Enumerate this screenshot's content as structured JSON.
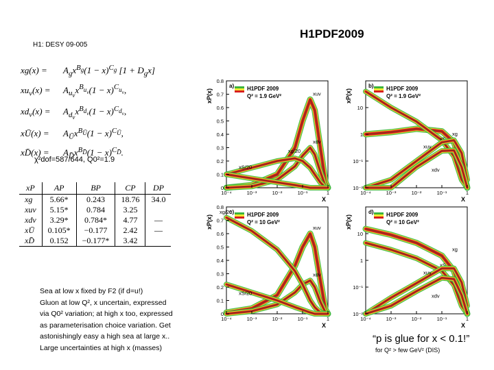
{
  "header": {
    "reference": "H1: DESY 09-005",
    "title": "H1PDF2009"
  },
  "equations": [
    {
      "lhs": "xg(x) =",
      "rhs": "A_g x^{B_g} (1 − x)^{C_g} [1 + D_g x]"
    },
    {
      "lhs": "xu_v(x) =",
      "rhs": "A_{u_v} x^{B_{u_v}} (1 − x)^{C_{u_v}},"
    },
    {
      "lhs": "xd_v(x) =",
      "rhs": "A_{d_v} x^{B_{d_v}} (1 − x)^{C_{d_v}},"
    },
    {
      "lhs": "xŪ(x) =",
      "rhs": "A_Ū x^{B_Ū} (1 − x)^{C_Ū},"
    },
    {
      "lhs": "xD̄(x) =",
      "rhs": "A_D̄ x^{B_D̄} (1 − x)^{C_D̄}."
    }
  ],
  "chi2": "χ²dof=587/644, Q0²=1.9",
  "param_table": {
    "headers": [
      "xP",
      "AP",
      "BP",
      "CP",
      "DP"
    ],
    "rows": [
      [
        "xg",
        "5.66*",
        "0.243",
        "18.76",
        "34.0"
      ],
      [
        "xuv",
        "5.15*",
        "0.784",
        "3.25",
        ""
      ],
      [
        "xdv",
        "3.29*",
        "0.784*",
        "4.77",
        "—"
      ],
      [
        "xŪ",
        "0.105*",
        "−0.177",
        "2.42",
        "—"
      ],
      [
        "xD̄",
        "0.152",
        "−0.177*",
        "3.42",
        ""
      ]
    ]
  },
  "notes": [
    "Sea at low x fixed by F2 (if d=u!)",
    "Gluon at low Q², x uncertain, expressed",
    "via Q0² variation; at high x too, expressed",
    "as parameterisation choice variation. Get",
    "astonishingly easy a high sea at large x..",
    "Large uncertainties at high x (masses)"
  ],
  "quote": "“p is glue for x < 0.1!”",
  "quote_sub": "for Q² > few GeV² (DIS)",
  "legend": {
    "name": "H1PDF 2009",
    "q2_low": "Q² = 1.9 GeV²",
    "q2_high": "Q² = 10 GeV²"
  },
  "colors": {
    "band_exp": "#d81e1e",
    "band_model": "#f2e830",
    "band_param": "#3cb43c",
    "central": "#6b3a1a"
  },
  "chart_data": [
    {
      "panel": "a)",
      "type": "line",
      "scale": "linear",
      "ylabel": "xP(x)",
      "xlabel": "X",
      "xlim": [
        0.0001,
        1
      ],
      "ylim": [
        0,
        0.8
      ],
      "yticks": [
        "0",
        "0.1",
        "0.2",
        "0.3",
        "0.4",
        "0.5",
        "0.6",
        "0.7",
        "0.8"
      ],
      "xticks": [
        "10⁻⁴",
        "10⁻³",
        "10⁻²",
        "10⁻¹",
        "1"
      ],
      "series": [
        {
          "name": "xuv",
          "x": [
            0.0001,
            0.001,
            0.01,
            0.05,
            0.1,
            0.2,
            0.3,
            0.5,
            0.8,
            1
          ],
          "y": [
            0.0,
            0.02,
            0.1,
            0.3,
            0.5,
            0.66,
            0.58,
            0.3,
            0.04,
            0
          ]
        },
        {
          "name": "xdv",
          "x": [
            0.0001,
            0.001,
            0.01,
            0.05,
            0.1,
            0.2,
            0.3,
            0.5,
            0.8,
            1
          ],
          "y": [
            0.0,
            0.01,
            0.06,
            0.16,
            0.24,
            0.3,
            0.25,
            0.12,
            0.01,
            0
          ]
        },
        {
          "name": "xg/20",
          "x": [
            0.0001,
            0.001,
            0.01,
            0.05,
            0.1,
            0.2,
            0.3,
            0.5,
            0.8,
            1
          ],
          "y": [
            0.1,
            0.15,
            0.2,
            0.22,
            0.2,
            0.15,
            0.1,
            0.04,
            0.0,
            0
          ]
        },
        {
          "name": "xS/20",
          "x": [
            0.0001,
            0.001,
            0.01,
            0.05,
            0.1,
            0.2,
            0.3,
            0.5,
            0.8,
            1
          ],
          "y": [
            0.1,
            0.07,
            0.04,
            0.02,
            0.01,
            0.0,
            0,
            0,
            0,
            0
          ]
        }
      ]
    },
    {
      "panel": "b)",
      "type": "line",
      "scale": "log",
      "ylabel": "xP(x)",
      "xlabel": "X",
      "xlim": [
        0.0001,
        1
      ],
      "ylim": [
        0.01,
        100
      ],
      "yticks": [
        "10⁻²",
        "10⁻¹",
        "1",
        "10",
        ""
      ],
      "xticks": [
        "10⁻⁴",
        "10⁻³",
        "10⁻²",
        "10⁻¹",
        "1"
      ],
      "series": [
        {
          "name": "xg",
          "x": [
            0.0001,
            0.001,
            0.01,
            0.1,
            0.3,
            0.6,
            1
          ],
          "y": [
            1.0,
            1.2,
            1.6,
            1.3,
            0.5,
            0.07,
            0.01
          ]
        },
        {
          "name": "xS",
          "x": [
            0.0001,
            0.001,
            0.01,
            0.1,
            0.3,
            0.6,
            1
          ],
          "y": [
            40,
            10,
            3.0,
            0.6,
            0.15,
            0.02,
            0.01
          ]
        },
        {
          "name": "xuv",
          "x": [
            0.0001,
            0.001,
            0.01,
            0.1,
            0.3,
            0.6,
            1
          ],
          "y": [
            0.005,
            0.02,
            0.1,
            0.5,
            0.6,
            0.2,
            0.02
          ]
        },
        {
          "name": "xdv",
          "x": [
            0.0001,
            0.001,
            0.01,
            0.1,
            0.3,
            0.6,
            1
          ],
          "y": [
            0.003,
            0.01,
            0.06,
            0.24,
            0.25,
            0.06,
            0.01
          ]
        }
      ]
    },
    {
      "panel": "c)",
      "type": "line",
      "scale": "linear",
      "ylabel": "xP(x)",
      "xlabel": "X",
      "xlim": [
        0.0001,
        1
      ],
      "ylim": [
        0,
        0.8
      ],
      "yticks": [
        "0",
        "0.1",
        "0.2",
        "0.3",
        "0.4",
        "0.5",
        "0.6",
        "0.7",
        "0.8"
      ],
      "xticks": [
        "10⁻⁴",
        "10⁻³",
        "10⁻²",
        "10⁻¹",
        "1"
      ],
      "series": [
        {
          "name": "xuv",
          "x": [
            0.0001,
            0.001,
            0.01,
            0.05,
            0.1,
            0.2,
            0.3,
            0.5,
            0.8,
            1
          ],
          "y": [
            0.01,
            0.04,
            0.14,
            0.36,
            0.5,
            0.6,
            0.5,
            0.25,
            0.03,
            0
          ]
        },
        {
          "name": "xdv",
          "x": [
            0.0001,
            0.001,
            0.01,
            0.05,
            0.1,
            0.2,
            0.3,
            0.5,
            0.8,
            1
          ],
          "y": [
            0.0,
            0.02,
            0.07,
            0.16,
            0.22,
            0.25,
            0.2,
            0.09,
            0.01,
            0
          ]
        },
        {
          "name": "xg/20",
          "x": [
            0.0001,
            0.001,
            0.01,
            0.05,
            0.1,
            0.2,
            0.3,
            0.5,
            0.8,
            1
          ],
          "y": [
            0.72,
            0.62,
            0.48,
            0.32,
            0.22,
            0.1,
            0.05,
            0.01,
            0,
            0
          ]
        },
        {
          "name": "xS/20",
          "x": [
            0.0001,
            0.001,
            0.01,
            0.05,
            0.1,
            0.2,
            0.3,
            0.5,
            0.8,
            1
          ],
          "y": [
            0.22,
            0.16,
            0.1,
            0.05,
            0.03,
            0.01,
            0,
            0,
            0,
            0
          ]
        }
      ]
    },
    {
      "panel": "d)",
      "type": "line",
      "scale": "log",
      "ylabel": "xP(x)",
      "xlabel": "X",
      "xlim": [
        0.0001,
        1
      ],
      "ylim": [
        0.01,
        100
      ],
      "yticks": [
        "10⁻²",
        "10⁻¹",
        "1",
        "10",
        ""
      ],
      "xticks": [
        "10⁻⁴",
        "10⁻³",
        "10⁻²",
        "10⁻¹",
        "1"
      ],
      "series": [
        {
          "name": "xg",
          "x": [
            0.0001,
            0.001,
            0.01,
            0.1,
            0.3,
            0.6,
            1
          ],
          "y": [
            15,
            9,
            4.5,
            1.5,
            0.4,
            0.05,
            0.01
          ]
        },
        {
          "name": "xS",
          "x": [
            0.0001,
            0.001,
            0.01,
            0.1,
            0.3,
            0.6,
            1
          ],
          "y": [
            4.5,
            2.5,
            1.2,
            0.4,
            0.12,
            0.02,
            0.01
          ]
        },
        {
          "name": "xuv",
          "x": [
            0.0001,
            0.001,
            0.01,
            0.1,
            0.3,
            0.6,
            1
          ],
          "y": [
            0.01,
            0.04,
            0.14,
            0.5,
            0.5,
            0.15,
            0.02
          ]
        },
        {
          "name": "xdv",
          "x": [
            0.0001,
            0.001,
            0.01,
            0.1,
            0.3,
            0.6,
            1
          ],
          "y": [
            0.005,
            0.02,
            0.07,
            0.22,
            0.2,
            0.05,
            0.01
          ]
        }
      ]
    }
  ]
}
